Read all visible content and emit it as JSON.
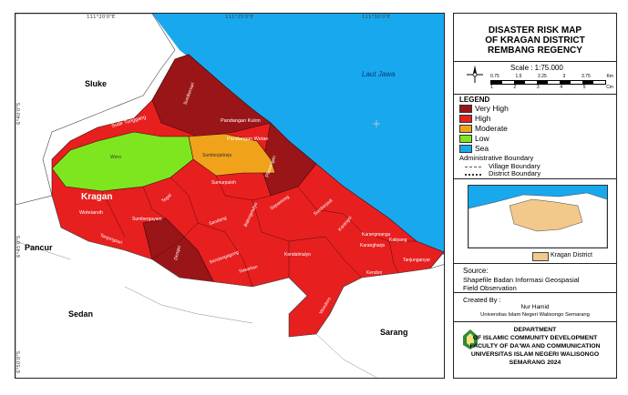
{
  "map": {
    "sea_label": "Laut Jawa",
    "region_labels": [
      "Sluke",
      "Kragan",
      "Pancur",
      "Sedan",
      "Sarang"
    ],
    "village_labels": [
      "Sumbersari",
      "Sudir Tunggang",
      "Pandangan Kulon",
      "Pandangan Wetan",
      "Woro",
      "Sumberjatirejo",
      "Plawangan",
      "Sumurpuleh",
      "Tegal",
      "Sendang",
      "Balongmulyo",
      "Sepantong",
      "Kragan",
      "Woteiarsih",
      "Sumbergayam",
      "Tanjungsari",
      "Sumberjadi",
      "Karangsi",
      "Dempo",
      "Kendalmulyo",
      "Sendangagung",
      "Sawahan",
      "Rangiwawungan",
      "Karangmangu",
      "Karangharjo",
      "Kalipang",
      "Pilangsari",
      "Tanjunganyar",
      "Tarunasari",
      "Kendori",
      "Woedoro"
    ],
    "top_ticks": [
      "111°20'0\"E",
      "111°25'0\"E",
      "111°30'0\"E"
    ],
    "left_ticks": [
      "6°40'0\"S",
      "6°45'0\"S",
      "6°50'0\"S"
    ],
    "colors": {
      "very_high": "#9a1518",
      "high": "#e81f1f",
      "moderate": "#f0a21a",
      "low": "#7ee61e",
      "sea": "#18a8ee"
    }
  },
  "panel": {
    "title_lines": [
      "DISASTER RISK MAP",
      "OF KRAGAN DISTRICT",
      "REMBANG REGENCY"
    ],
    "scale_label": "Scale : 1:75.000",
    "scale_top_ticks": [
      "0.75",
      "1.5",
      "2.25",
      "3",
      "3.75",
      "Km"
    ],
    "scale_bottom_ticks": [
      "1",
      "2",
      "3",
      "4",
      "5",
      "Cm"
    ],
    "legend_title": "LEGEND",
    "legend": [
      {
        "label": "Very High",
        "color": "#9a1518"
      },
      {
        "label": "High",
        "color": "#e81f1f"
      },
      {
        "label": "Moderate",
        "color": "#f0a21a"
      },
      {
        "label": "Low",
        "color": "#7ee61e"
      },
      {
        "label": "Sea",
        "color": "#18a8ee"
      }
    ],
    "admin_title": "Administrative Boundary",
    "village_boundary": "Village Boundary",
    "district_boundary": "District Boundary",
    "inset_legend": "Kragan District",
    "source_title": "Source:",
    "source_lines": [
      "Shapefile Badan Informasi Geospasial",
      "Field Observation"
    ],
    "created_title": "Created By :",
    "author": "Nur Hamid",
    "university_short": "Universitas Islam Negeri Walisongo Semarang",
    "footer_lines": [
      "DEPARTMENT",
      "OF ISLAMIC COMMUNITY DEVELOPMENT",
      "FACULTY OF DA'WA AND COMMUNICATION",
      "UNIVERSITAS ISLAM NEGERI WALISONGO",
      "SEMARANG 2024"
    ]
  }
}
